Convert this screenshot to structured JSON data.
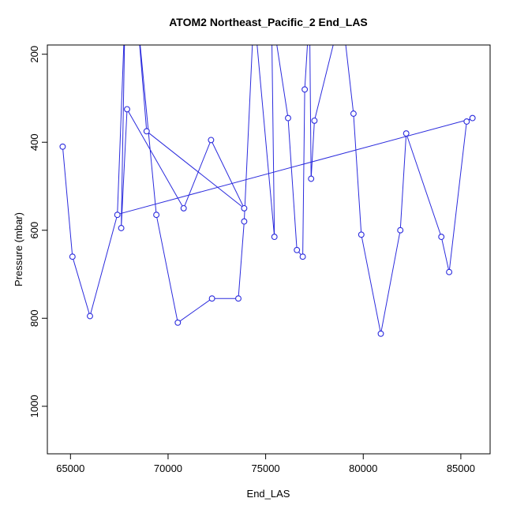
{
  "chart_data": {
    "type": "line",
    "title": "ATOM2 Northeast_Pacific_2 End_LAS",
    "xlabel": "End_LAS",
    "ylabel": "Pressure (mbar)",
    "x_ticks": [
      65000,
      70000,
      75000,
      80000,
      85000
    ],
    "y_ticks": [
      200,
      400,
      600,
      800,
      1000
    ],
    "x_range": [
      63815,
      86500
    ],
    "y_range": [
      179,
      1108
    ],
    "y_axis_direction": "increasing-downward",
    "grid": false,
    "legend": "none",
    "line_color": "#2b2bdd",
    "axis_color": "#000000",
    "marker": "open-circle",
    "points": [
      [
        64600,
        410
      ],
      [
        65100,
        660
      ],
      [
        66000,
        795
      ],
      [
        67400,
        565
      ],
      [
        67600,
        595
      ],
      [
        67900,
        325
      ],
      [
        68900,
        375
      ],
      [
        69400,
        565
      ],
      [
        70500,
        810
      ],
      [
        70800,
        550
      ],
      [
        72200,
        395
      ],
      [
        72250,
        755
      ],
      [
        73600,
        755
      ],
      [
        73900,
        550
      ],
      [
        73900,
        580
      ],
      [
        75450,
        615
      ],
      [
        76150,
        345
      ],
      [
        76600,
        645
      ],
      [
        76900,
        660
      ],
      [
        77000,
        280
      ],
      [
        77330,
        483
      ],
      [
        77500,
        351
      ],
      [
        79500,
        335
      ],
      [
        79900,
        610
      ],
      [
        80900,
        835
      ],
      [
        81900,
        600
      ],
      [
        82200,
        380
      ],
      [
        84000,
        615
      ],
      [
        84400,
        695
      ],
      [
        85300,
        353
      ],
      [
        85600,
        345
      ]
    ],
    "path": [
      [
        64600,
        410
      ],
      [
        65100,
        660
      ],
      [
        66000,
        795
      ],
      [
        67400,
        565
      ],
      [
        67800,
        100
      ],
      [
        67600,
        595
      ],
      [
        67900,
        325
      ],
      [
        70800,
        550
      ],
      [
        72200,
        395
      ],
      [
        73900,
        550
      ],
      [
        68900,
        375
      ],
      [
        68400,
        100
      ],
      [
        69400,
        565
      ],
      [
        70500,
        810
      ],
      [
        72250,
        755
      ],
      [
        73600,
        755
      ],
      [
        73900,
        580
      ],
      [
        74400,
        100
      ],
      [
        75450,
        615
      ],
      [
        75300,
        100
      ],
      [
        76150,
        345
      ],
      [
        76600,
        645
      ],
      [
        76900,
        660
      ],
      [
        77000,
        280
      ],
      [
        77250,
        100
      ],
      [
        77330,
        483
      ],
      [
        77500,
        351
      ],
      [
        78900,
        100
      ],
      [
        79500,
        335
      ],
      [
        79900,
        610
      ],
      [
        80900,
        835
      ],
      [
        81900,
        600
      ],
      [
        82200,
        380
      ],
      [
        84000,
        615
      ],
      [
        84400,
        695
      ],
      [
        85300,
        353
      ],
      [
        85600,
        345
      ]
    ],
    "trend": [
      [
        67400,
        564
      ],
      [
        85600,
        346
      ]
    ]
  }
}
